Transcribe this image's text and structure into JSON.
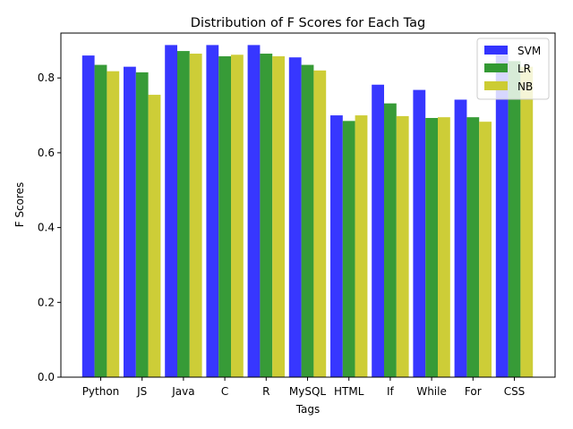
{
  "chart_data": {
    "type": "bar",
    "title": "Distribution of F Scores for Each Tag",
    "xlabel": "Tags",
    "ylabel": "F Scores",
    "categories": [
      "Python",
      "JS",
      "Java",
      "C",
      "R",
      "MySQL",
      "HTML",
      "If",
      "While",
      "For",
      "CSS"
    ],
    "ylim": [
      0,
      0.92
    ],
    "yticks": [
      "0.0",
      "0.2",
      "0.4",
      "0.6",
      "0.8"
    ],
    "legend_position": "top-right",
    "grid": false,
    "series": [
      {
        "name": "SVM",
        "color": "#3333ff",
        "values": [
          0.86,
          0.83,
          0.888,
          0.888,
          0.888,
          0.855,
          0.7,
          0.782,
          0.768,
          0.742,
          0.862
        ]
      },
      {
        "name": "LR",
        "color": "#339933",
        "values": [
          0.835,
          0.815,
          0.872,
          0.858,
          0.865,
          0.835,
          0.685,
          0.732,
          0.693,
          0.695,
          0.845
        ]
      },
      {
        "name": "NB",
        "color": "#cccc33",
        "values": [
          0.818,
          0.755,
          0.865,
          0.862,
          0.858,
          0.82,
          0.7,
          0.698,
          0.695,
          0.683,
          0.83
        ]
      }
    ]
  }
}
